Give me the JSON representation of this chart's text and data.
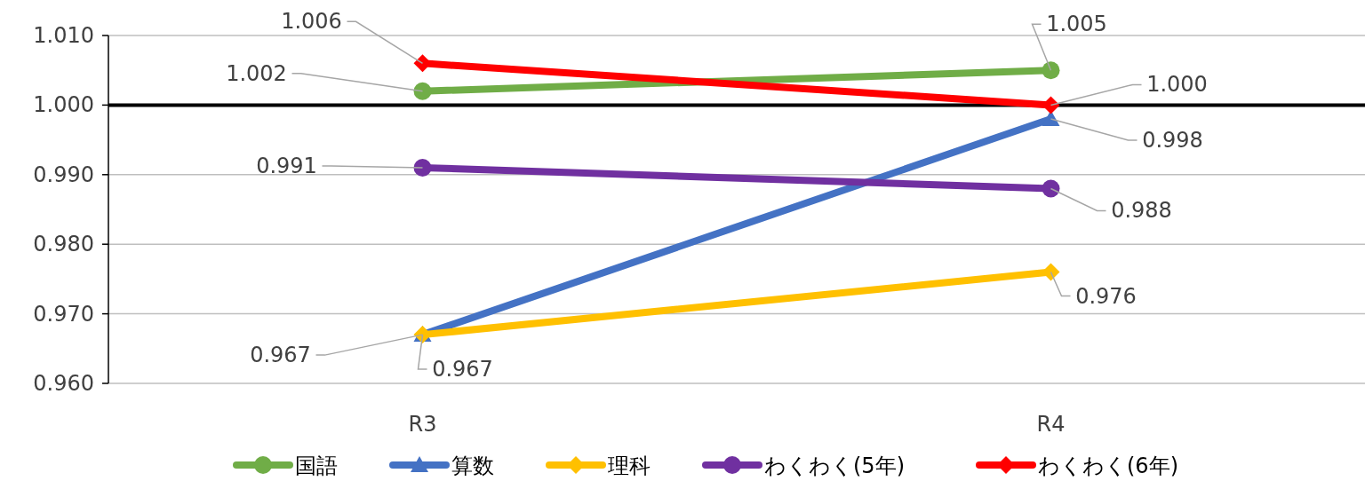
{
  "chart_data": {
    "type": "line",
    "categories": [
      "R3",
      "R4"
    ],
    "series": [
      {
        "name": "国語",
        "color": "#70ad47",
        "marker": "circle",
        "values": [
          1.002,
          1.005
        ],
        "value_labels": [
          "1.002",
          "1.005"
        ]
      },
      {
        "name": "算数",
        "color": "#4472c4",
        "marker": "triangle",
        "values": [
          0.967,
          0.998
        ],
        "value_labels": [
          "0.967",
          "0.998"
        ]
      },
      {
        "name": "理科",
        "color": "#ffc000",
        "marker": "diamond",
        "values": [
          0.967,
          0.976
        ],
        "value_labels": [
          "0.967",
          "0.976"
        ]
      },
      {
        "name": "わくわく(5年)",
        "color": "#7030a0",
        "marker": "circle",
        "values": [
          0.991,
          0.988
        ],
        "value_labels": [
          "0.991",
          "0.988"
        ]
      },
      {
        "name": "わくわく(6年)",
        "color": "#ff0000",
        "marker": "diamond",
        "values": [
          1.006,
          1.0
        ],
        "value_labels": [
          "1.006",
          "1.000"
        ]
      }
    ],
    "ylim": [
      0.96,
      1.01
    ],
    "yticks": [
      {
        "value": 0.96,
        "label": "0.960"
      },
      {
        "value": 0.97,
        "label": "0.970"
      },
      {
        "value": 0.98,
        "label": "0.980"
      },
      {
        "value": 0.99,
        "label": "0.990"
      },
      {
        "value": 1.0,
        "label": "1.000"
      },
      {
        "value": 1.01,
        "label": "1.010"
      }
    ],
    "grid": "y",
    "ref_lines": [
      {
        "axis": "y",
        "value": 1.0,
        "color": "#000000"
      }
    ],
    "legend": "bottom"
  }
}
